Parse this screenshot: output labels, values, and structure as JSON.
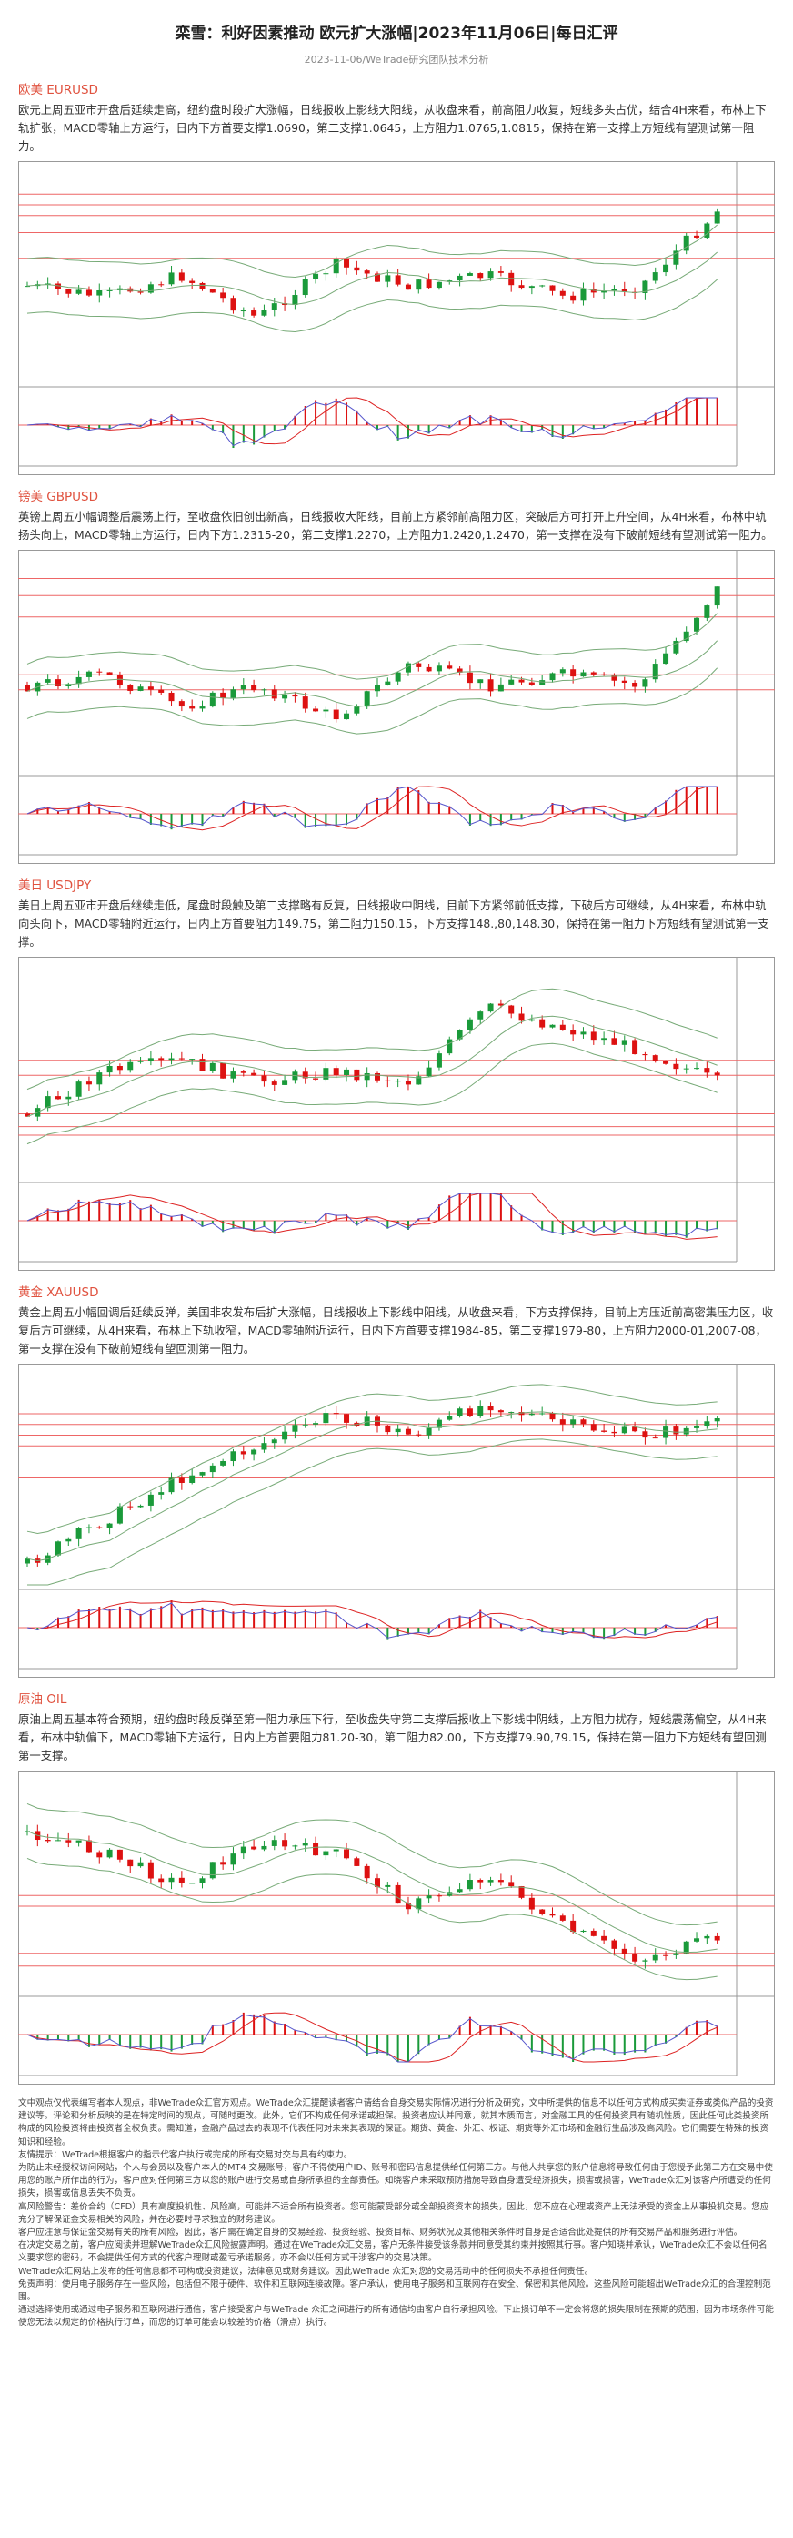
{
  "header": {
    "title": "栾雪：利好因素推动 欧元扩大涨幅|2023年11月06日|每日汇评",
    "subtitle": "2023-11-06/WeTrade研究团队技术分析"
  },
  "sections": [
    {
      "heading": "欧美 EURUSD",
      "text": "欧元上周五亚市开盘后延续走高，纽约盘时段扩大涨幅，日线报收上影线大阳线，从收盘来看，前高阻力收复，短线多头占优，结合4H来看，布林上下轨扩张，MACD零轴上方运行，日内下方首要支撑1.0690，第二支撑1.0645，上方阻力1.0765,1.0815，保持在第一支撑上方短线有望测试第一阻力。"
    },
    {
      "heading": "镑美 GBPUSD",
      "text": "英镑上周五小幅调整后震荡上行，至收盘依旧创出新高，日线报收大阳线，目前上方紧邻前高阻力区，突破后方可打开上升空间，从4H来看，布林中轨扬头向上，MACD零轴上方运行，日内下方1.2315-20，第二支撑1.2270，上方阻力1.2420,1.2470，第一支撑在没有下破前短线有望测试第一阻力。"
    },
    {
      "heading": "美日 USDJPY",
      "text": "美日上周五亚市开盘后继续走低，尾盘时段触及第二支撑略有反复，日线报收中阴线，目前下方紧邻前低支撑，下破后方可继续，从4H来看，布林中轨向头向下，MACD零轴附近运行，日内上方首要阻力149.75，第二阻力150.15，下方支撑148.,80,148.30，保持在第一阻力下方短线有望测试第一支撑。"
    },
    {
      "heading": "黄金 XAUUSD",
      "text": "黄金上周五小幅回调后延续反弹，美国非农发布后扩大涨幅，日线报收上下影线中阳线，从收盘来看，下方支撑保持，目前上方压近前高密集压力区，收复后方可继续，从4H来看，布林上下轨收窄，MACD零轴附近运行，日内下方首要支撑1984-85，第二支撑1979-80，上方阻力2000-01,2007-08，第一支撑在没有下破前短线有望回测第一阻力。"
    },
    {
      "heading": "原油 OIL",
      "text": "原油上周五基本符合预期，纽约盘时段反弹至第一阻力承压下行，至收盘失守第二支撑后报收上下影线中阴线，上方阻力扰存，短线震荡偏空，从4H来看，布林中轨偏下，MACD零轴下方运行，日内上方首要阻力81.20-30，第二阻力82.00，下方支撑79.90,79.15，保持在第一阻力下方短线有望回测第一支撑。"
    }
  ],
  "disclaimer": [
    "文中观点仅代表编写者本人观点，非WeTrade众汇官方观点。WeTrade众汇提醒读者客户请结合自身交易实际情况进行分析及研究，文中所提供的信息不以任何方式构成买卖证券或类似产品的投资建议等。评论和分析反映的是在特定时间的观点，可随时更改。此外，它们不构成任何承诺或担保。投资者应认并同意，就其本质而言，对金融工具的任何投资具有随机性质，因此任何此类投资所构成的风险投资将由投资者全权负责。需知道，金融产品过去的表现不代表任何对未来其表现的保证。期货、黄金、外汇、权证、期货等外汇市场和金融衍生品涉及高风险。它们需要在特殊的投资知识和经验。",
    "友情提示：WeTrade根据客户的指示代客户执行或完成的所有交易对交与具有约束力。",
    "为防止未经授权访问网站，个人与会员以及客户本人的MT4 交易账号，客户不得使用户ID、账号和密码信息提供给任何第三方。与他人共享您的账户信息将导致任何由于您授予此第三方在交易中使用您的账户所作出的行为，客户应对任何第三方以您的账户进行交易或自身所承担的全部责任。知晓客户未采取预防措施导致自身遭受经济损失，损害或损害，WeTrade众汇对该客户所遭受的任何损失，损害或信息丢失不负责。",
    "高风险警告：差价合约（CFD）具有高度投机性、风险高，可能并不适合所有投资者。您可能蒙受部分或全部投资资本的损失，因此，您不应在心理或资产上无法承受的资金上从事投机交易。您应充分了解保证金交易相关的风险，并在必要时寻求独立的财务建议。",
    "客户应注意与保证金交易有关的所有风险，因此，客户需在确定自身的交易经验、投资经验、投资目标、财务状况及其他相关条件时自身是否适合此处提供的所有交易产品和服务进行评估。",
    "在决定交易之前，客户应阅读并理解WeTrade众汇风险披露声明。通过在WeTrade众汇交易，客户无条件接受该条款并同意受其约束并按照其行事。客户知晓并承认，WeTrade众汇不会以任何名义要求您的密码，不会提供任何方式的代客户理财或盈亏承诺服务，亦不会以任何方式干涉客户的交易决策。",
    "WeTrade众汇网站上发布的任何信息都不可构成投资建议，法律意见或财务建议。因此WeTrade 众汇对您的交易活动中的任何损失不承担任何责任。",
    "免责声明：使用电子服务存在一些风险，包括但不限于硬件、软件和互联网连接故障。客户承认，使用电子服务和互联网存在安全、保密和其他风险。这些风险可能超出WeTrade众汇的合理控制范围。",
    "通过选择使用或通过电子服务和互联网进行通信，客户接受客户与WeTrade 众汇之间进行的所有通信均由客户自行承担风险。下止损订单不一定会将您的损失限制在预期的范围，因为市场条件可能使您无法以规定的价格执行订单，而您的订单可能会以较差的价格（滑点）执行。"
  ]
}
